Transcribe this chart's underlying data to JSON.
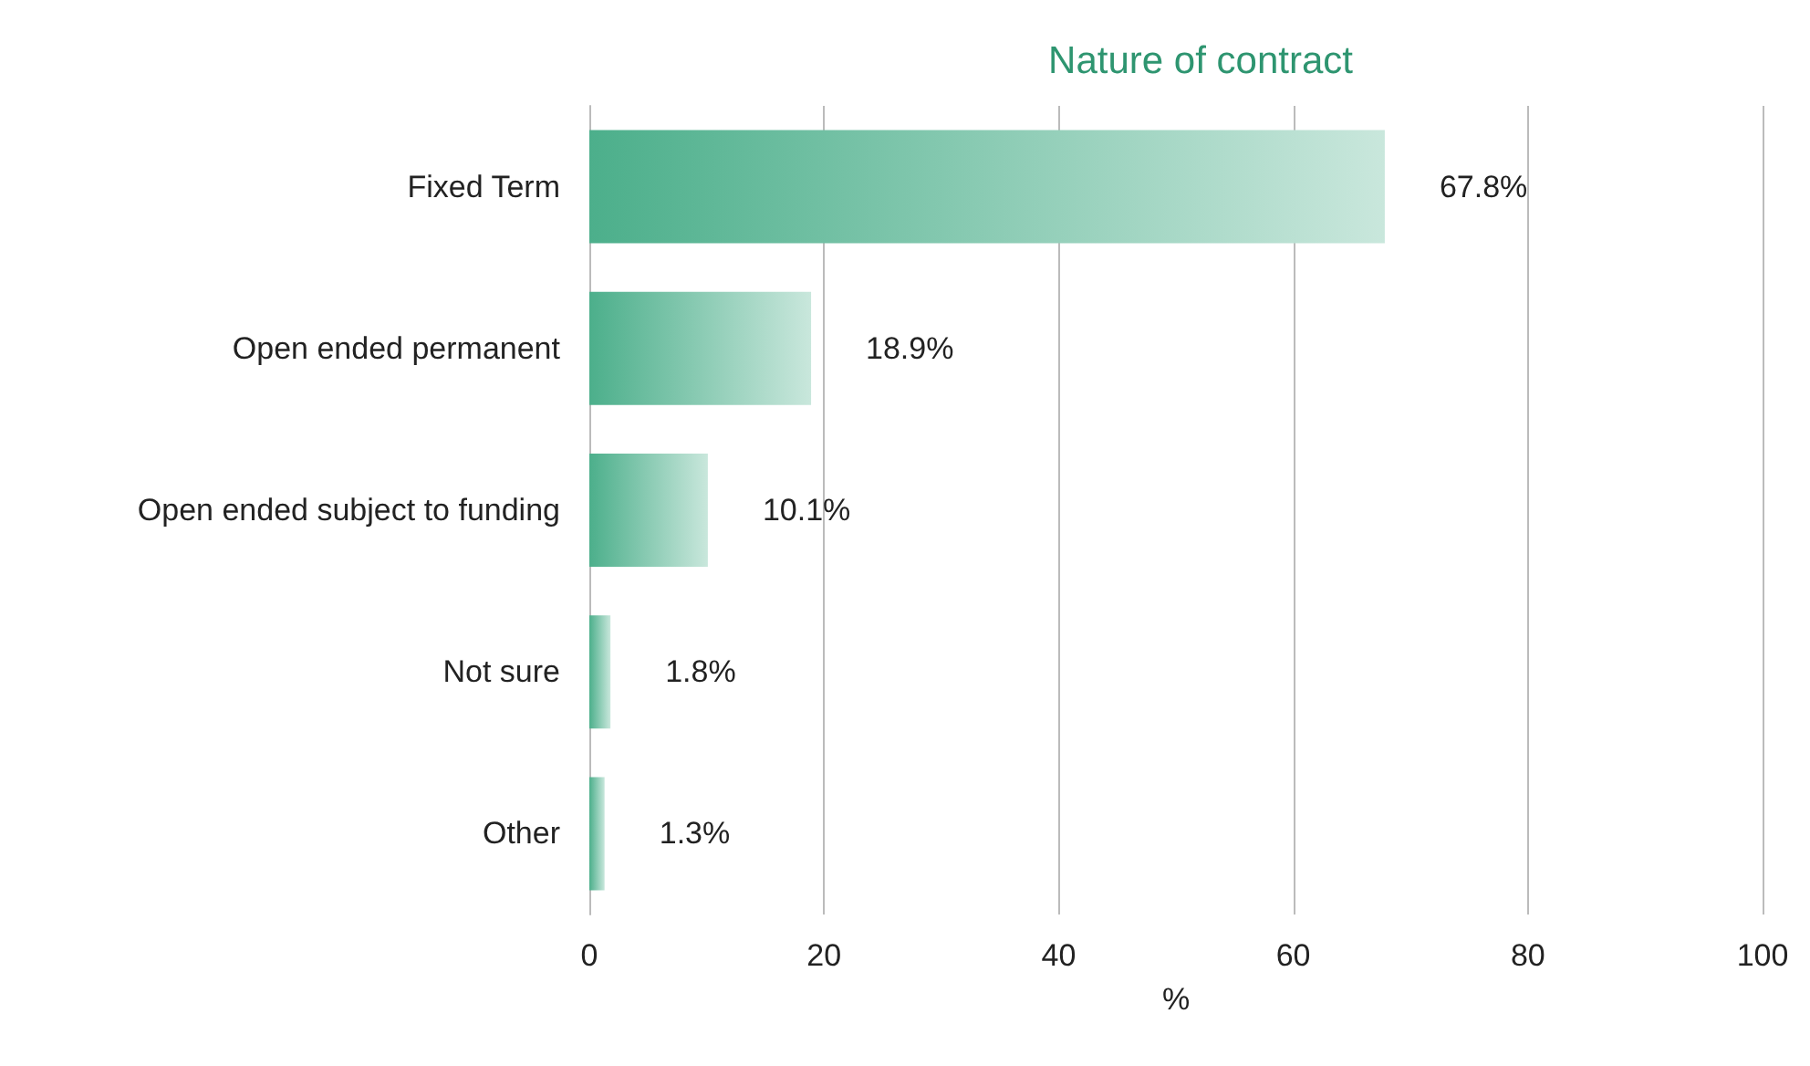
{
  "chart_data": {
    "type": "bar",
    "orientation": "horizontal",
    "title": "Nature of contract",
    "xlabel": "%",
    "categories": [
      "Fixed Term",
      "Open ended permanent",
      "Open ended subject to funding",
      "Not sure",
      "Other"
    ],
    "values": [
      67.8,
      18.9,
      10.1,
      1.8,
      1.3
    ],
    "value_labels": [
      "67.8%",
      "18.9%",
      "10.1%",
      "1.8%",
      "1.3%"
    ],
    "color": "#4caf8b",
    "xlim": [
      0,
      100
    ],
    "xticks": [
      0,
      20,
      40,
      60,
      80,
      100
    ],
    "grid": "x"
  }
}
